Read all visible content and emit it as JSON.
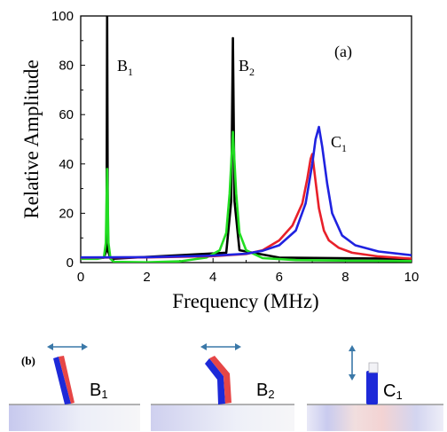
{
  "chart_data": {
    "type": "line",
    "xlabel": "Frequency (MHz)",
    "ylabel": "Relative Amplitude",
    "xlim": [
      0,
      10
    ],
    "ylim": [
      0,
      100
    ],
    "xticks": [
      "0",
      "2",
      "4",
      "6",
      "8",
      "10"
    ],
    "yticks": [
      "0",
      "20",
      "40",
      "60",
      "80",
      "100"
    ],
    "grid": false,
    "panel_label": "(a)",
    "series_colors": {
      "black": "#000000",
      "green": "#22dd22",
      "red": "#e8202a",
      "blue": "#1f22e0"
    },
    "series": [
      {
        "color": "black",
        "x": [
          0.0,
          0.7,
          0.78,
          0.8,
          0.82,
          0.9,
          4.4,
          4.55,
          4.6,
          4.65,
          4.8,
          6.0,
          10.0
        ],
        "y": [
          1.8,
          2.0,
          5.0,
          100.0,
          5.0,
          1.5,
          4.0,
          25.0,
          91.0,
          25.0,
          5.0,
          2.0,
          1.5
        ]
      },
      {
        "color": "green",
        "x": [
          0.0,
          0.5,
          0.7,
          0.76,
          0.8,
          0.84,
          0.9,
          1.0,
          2.0,
          3.0,
          3.8,
          4.2,
          4.4,
          4.5,
          4.6,
          4.7,
          4.8,
          5.0,
          5.5,
          6.5,
          8.0,
          10.0
        ],
        "y": [
          1.5,
          1.5,
          2.0,
          8.0,
          38.0,
          8.0,
          1.5,
          0.3,
          0.1,
          0.5,
          2.0,
          5.0,
          12.0,
          28.0,
          53.0,
          28.0,
          12.0,
          5.0,
          1.8,
          1.0,
          0.8,
          0.6
        ]
      },
      {
        "color": "red",
        "x": [
          0.0,
          2.0,
          4.0,
          5.0,
          5.5,
          6.0,
          6.4,
          6.7,
          6.85,
          6.95,
          7.0,
          7.1,
          7.2,
          7.35,
          7.5,
          7.8,
          8.2,
          9.0,
          10.0
        ],
        "y": [
          2.0,
          2.1,
          2.6,
          3.5,
          5.0,
          9.0,
          15.0,
          24.0,
          34.0,
          42.0,
          44.0,
          33.0,
          22.0,
          13.0,
          9.0,
          6.0,
          4.0,
          2.5,
          1.6
        ]
      },
      {
        "color": "blue",
        "x": [
          0.0,
          2.0,
          4.0,
          5.0,
          5.5,
          6.0,
          6.5,
          6.8,
          7.0,
          7.1,
          7.2,
          7.3,
          7.45,
          7.6,
          7.9,
          8.3,
          9.0,
          10.0
        ],
        "y": [
          2.1,
          2.2,
          2.8,
          3.6,
          4.8,
          7.0,
          13.0,
          24.0,
          40.0,
          50.0,
          55.0,
          47.0,
          32.0,
          20.0,
          11.0,
          7.0,
          4.5,
          3.0
        ]
      }
    ],
    "annotations": [
      {
        "main": "B",
        "sub": "1"
      },
      {
        "main": "B",
        "sub": "2"
      },
      {
        "main": "C",
        "sub": "1"
      }
    ]
  },
  "lower_panel": {
    "label": "(b)",
    "items": [
      {
        "main": "B",
        "sub": "1"
      },
      {
        "main": "B",
        "sub": "2"
      },
      {
        "main": "C",
        "sub": "1"
      }
    ]
  }
}
